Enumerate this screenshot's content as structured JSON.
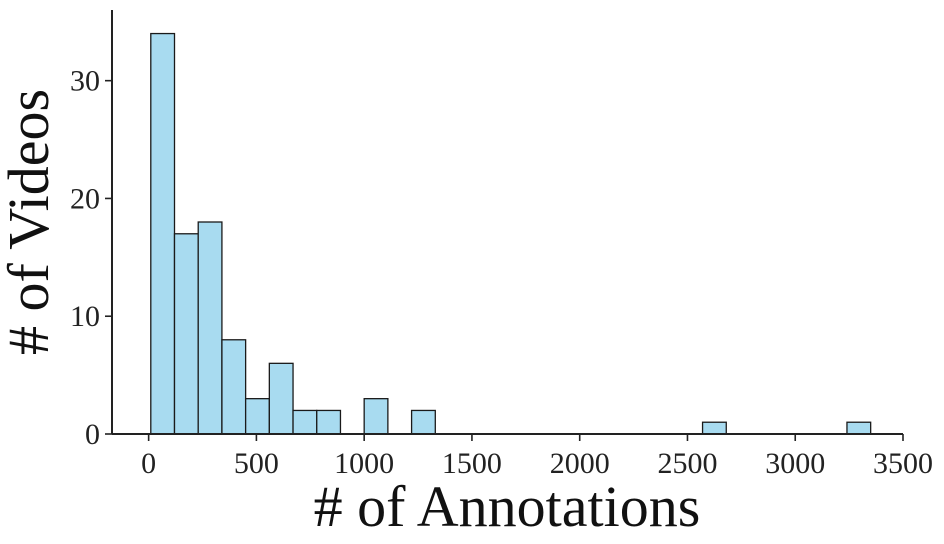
{
  "chart_data": {
    "type": "bar",
    "title": "",
    "xlabel": "# of Annotations",
    "ylabel": "# of Videos",
    "xlim": [
      -170,
      3500
    ],
    "ylim": [
      0,
      36
    ],
    "grid": false,
    "colors": {
      "bar_fill": "#a8dbf0",
      "bar_edge": "#1a1a1a",
      "axis": "#222222"
    },
    "xticks": [
      0,
      500,
      1000,
      1500,
      2000,
      2500,
      3000,
      3500
    ],
    "xtick_labels": [
      "0",
      "500",
      "1000",
      "1500",
      "2000",
      "2500",
      "3000",
      "3500"
    ],
    "yticks": [
      0,
      10,
      20,
      30
    ],
    "ytick_labels": [
      "0",
      "10",
      "20",
      "30"
    ],
    "bin_width": 110,
    "bins": [
      {
        "start": 10,
        "end": 120,
        "count": 34
      },
      {
        "start": 120,
        "end": 230,
        "count": 17
      },
      {
        "start": 230,
        "end": 340,
        "count": 18
      },
      {
        "start": 340,
        "end": 450,
        "count": 8
      },
      {
        "start": 450,
        "end": 560,
        "count": 3
      },
      {
        "start": 560,
        "end": 670,
        "count": 6
      },
      {
        "start": 670,
        "end": 780,
        "count": 2
      },
      {
        "start": 780,
        "end": 890,
        "count": 2
      },
      {
        "start": 890,
        "end": 1000,
        "count": 0
      },
      {
        "start": 1000,
        "end": 1110,
        "count": 3
      },
      {
        "start": 1110,
        "end": 1220,
        "count": 0
      },
      {
        "start": 1220,
        "end": 1330,
        "count": 2
      },
      {
        "start": 2570,
        "end": 2680,
        "count": 1
      },
      {
        "start": 3240,
        "end": 3350,
        "count": 1
      }
    ]
  }
}
